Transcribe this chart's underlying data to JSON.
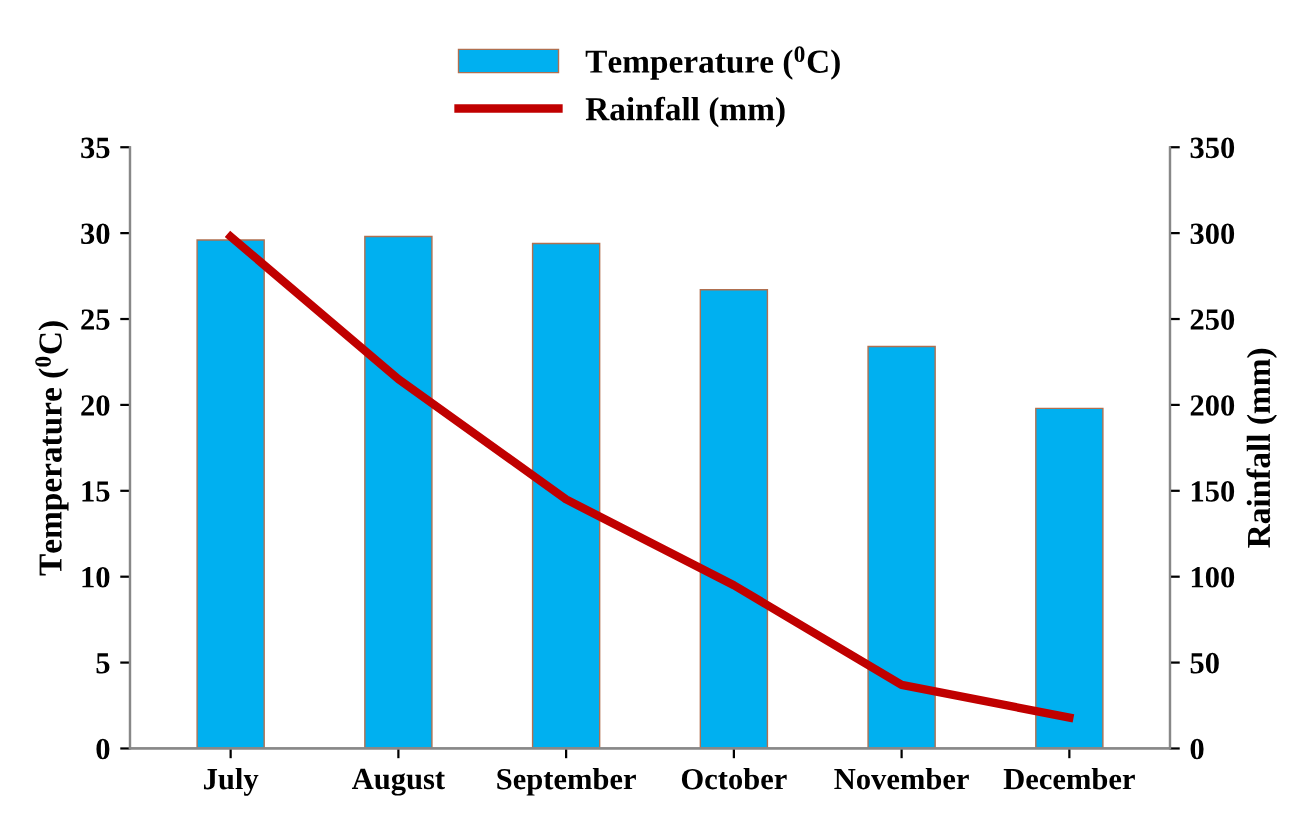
{
  "chart_data": {
    "type": "bar",
    "categories": [
      "July",
      "August",
      "September",
      "October",
      "November",
      "December"
    ],
    "ylabel": "Temperature ($^{0}$C)",
    "y2label": "Rainfall (mm)",
    "series": [
      {
        "name": "Temperature ($^{0}$C)",
        "color": "#00b0f0",
        "values": [
          29.6,
          29.8,
          29.4,
          26.7,
          23.4,
          19.8
        ]
      },
      {
        "name": "Rainfall (mm)",
        "type": "line",
        "axis": "y2",
        "color": "#c00000",
        "values": [
          298,
          215,
          145,
          95,
          37,
          18
        ]
      }
    ],
    "ylim": [
      0,
      35
    ],
    "yticks": [
      0,
      5,
      10,
      15,
      20,
      25,
      30,
      35
    ],
    "y2lim": [
      0,
      350
    ],
    "y2ticks": [
      0,
      50,
      100,
      150,
      200,
      250,
      300,
      350
    ],
    "grid": false,
    "legend": "top",
    "marker": "none",
    "line_style": "solid"
  }
}
